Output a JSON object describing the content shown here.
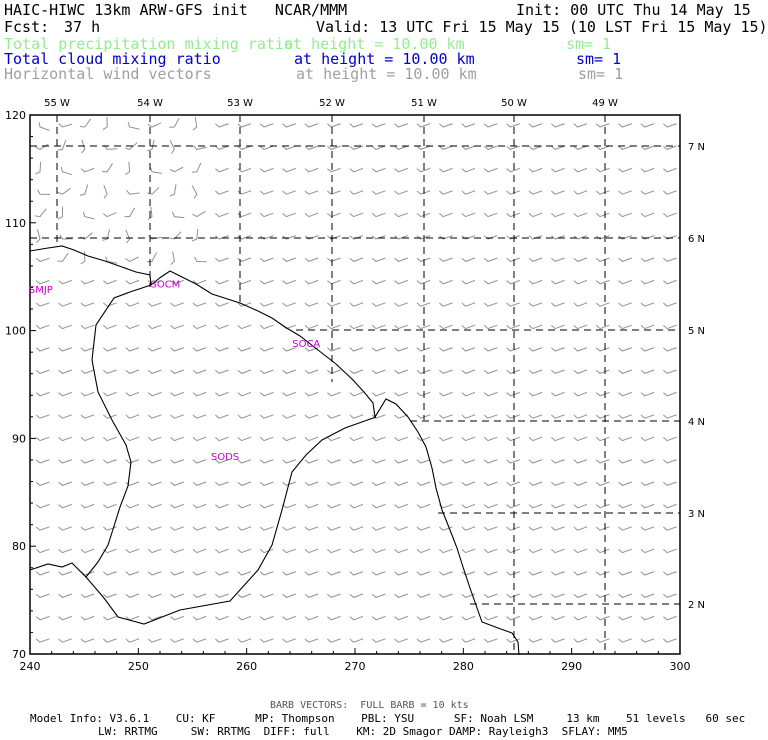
{
  "header": {
    "title": "HAIC-HIWC 13km ARW-GFS init   NCAR/MMM",
    "init": "Init: 00 UTC Thu 14 May 15",
    "fcst_label": "Fcst:",
    "fcst_value": "37 h",
    "valid": "Valid: 13 UTC Fri 15 May 15 (10 LST Fri 15 May 15)"
  },
  "fields": [
    {
      "name": "Total precipitation mixing ratio",
      "height": "at height = 10.00 km",
      "sm": "sm= 1",
      "color": "#90ee90"
    },
    {
      "name": "Total cloud mixing ratio",
      "height": "at height = 10.00 km",
      "sm": "sm= 1",
      "color": "#0000cc"
    },
    {
      "name": "Horizontal wind vectors",
      "height": "at height = 10.00 km",
      "sm": "sm= 1",
      "color": "#a0a0a0"
    }
  ],
  "map": {
    "x_ticks": [
      "240",
      "250",
      "260",
      "270",
      "280",
      "290",
      "300"
    ],
    "y_ticks": [
      "70",
      "80",
      "90",
      "100",
      "110",
      "120"
    ],
    "lon_labels": [
      "55 W",
      "54 W",
      "53 W",
      "52 W",
      "51 W",
      "50 W",
      "49 W"
    ],
    "lat_labels": [
      "2 N",
      "3 N",
      "4 N",
      "5 N",
      "6 N",
      "7 N"
    ],
    "stations": [
      {
        "label": "SMJP",
        "x": 241.0,
        "y": 103.5
      },
      {
        "label": "SOCM",
        "x": 252.5,
        "y": 104.0
      },
      {
        "label": "SOCA",
        "x": 265.5,
        "y": 98.5
      },
      {
        "label": "SODS",
        "x": 258.0,
        "y": 88.0
      }
    ],
    "station_color": "#cc00cc"
  },
  "footer": {
    "barb_note": "BARB VECTORS:  FULL BARB = 10 kts",
    "line1": "Model Info: V3.6.1    CU: KF      MP: Thompson    PBL: YSU      SF: Noah LSM     13 km    51 levels   60 sec",
    "line2": "LW: RRTMG     SW: RRTMG  DIFF: full    KM: 2D Smagor DAMP: Rayleigh3  SFLAY: MM5"
  }
}
